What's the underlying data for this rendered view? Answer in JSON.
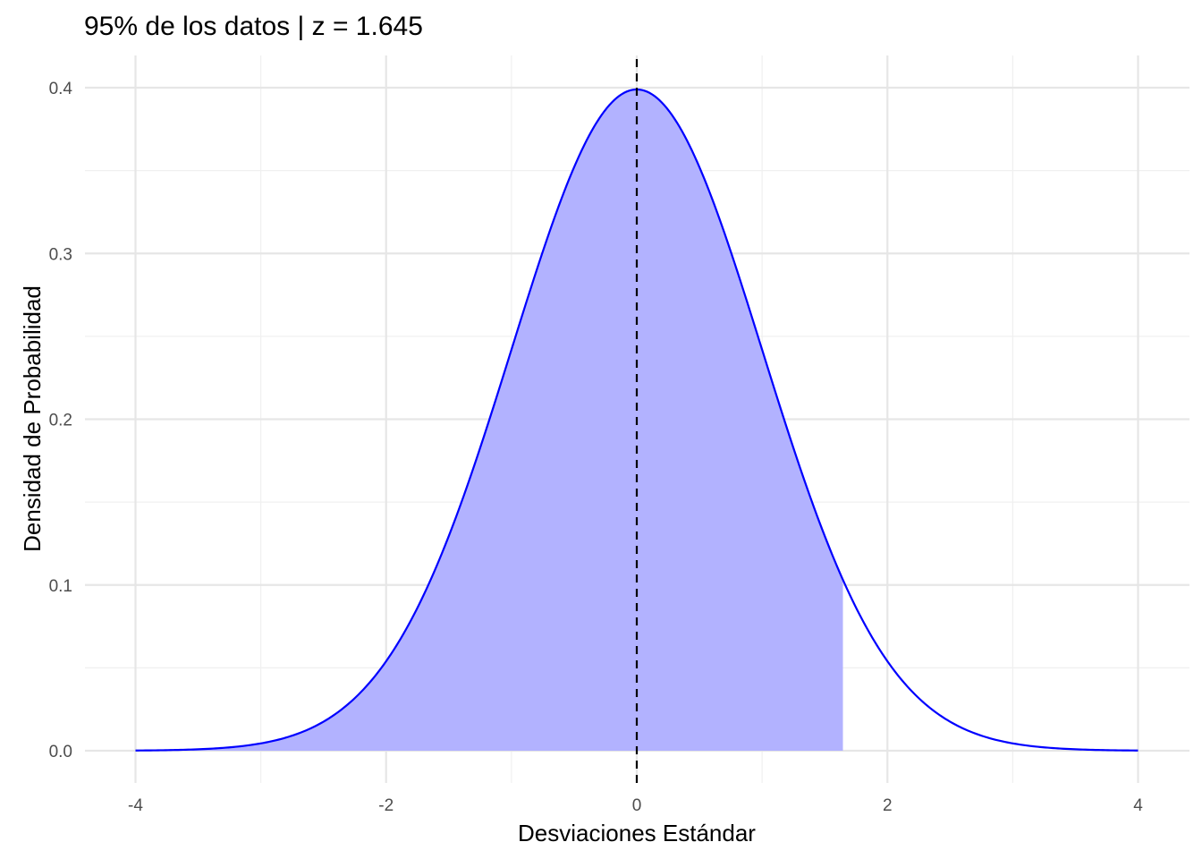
{
  "chart_data": {
    "type": "area",
    "title": "95% de los datos | z = 1.645",
    "xlabel": "Desviaciones Estándar",
    "ylabel": "Densidad de Probabilidad",
    "xlim": [
      -4,
      4
    ],
    "ylim": [
      0,
      0.4
    ],
    "x_ticks": [
      "-4",
      "-2",
      "0",
      "2",
      "4"
    ],
    "y_ticks": [
      "0.0",
      "0.1",
      "0.2",
      "0.3",
      "0.4"
    ],
    "grid": true,
    "series": [
      {
        "kind": "curve",
        "distribution": "standard normal density",
        "color": "#0000ff",
        "x": [
          -4,
          -3.5,
          -3,
          -2.5,
          -2,
          -1.5,
          -1,
          -0.5,
          0,
          0.5,
          1,
          1.5,
          2,
          2.5,
          3,
          3.5,
          4
        ],
        "y": [
          0.0001,
          0.0009,
          0.0044,
          0.0175,
          0.054,
          0.1295,
          0.242,
          0.3521,
          0.3989,
          0.3521,
          0.242,
          0.1295,
          0.054,
          0.0175,
          0.0044,
          0.0009,
          0.0001
        ]
      },
      {
        "kind": "shaded-area",
        "from": -4,
        "to": 1.645,
        "color": "#b2b2ff"
      },
      {
        "kind": "vertical-line",
        "x": 0,
        "style": "dashed",
        "color": "#000000"
      }
    ]
  }
}
